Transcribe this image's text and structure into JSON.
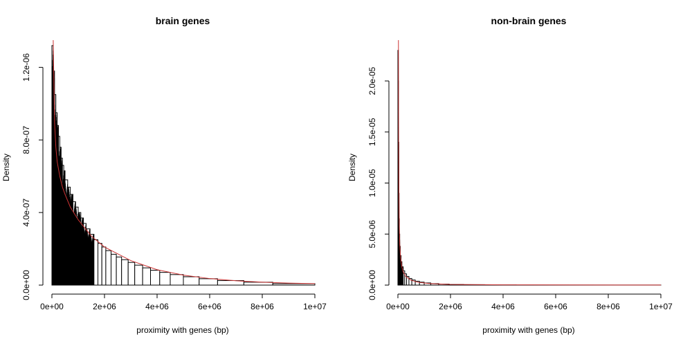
{
  "chart_data": [
    {
      "type": "histogram",
      "title": "brain genes",
      "xlabel": "proximity with genes (bp)",
      "ylabel": "Density",
      "xlim": [
        0,
        10000000
      ],
      "ylim": [
        0,
        1.35e-06
      ],
      "x_ticks": [
        0,
        2000000,
        4000000,
        6000000,
        8000000,
        10000000
      ],
      "x_tick_labels": [
        "0e+00",
        "2e+06",
        "4e+06",
        "6e+06",
        "8e+06",
        "1e+07"
      ],
      "y_ticks": [
        0,
        4e-07,
        8e-07,
        1.2e-06
      ],
      "y_tick_labels": [
        "0.0e+00",
        "4.0e-07",
        "8.0e-07",
        "1.2e-06"
      ],
      "bar_color": "#000000",
      "bins": [
        [
          0,
          50000,
          1.32e-06
        ],
        [
          50000,
          100000,
          1.18e-06
        ],
        [
          100000,
          150000,
          1.05e-06
        ],
        [
          150000,
          200000,
          9.5e-07
        ],
        [
          200000,
          250000,
          8.8e-07
        ],
        [
          250000,
          300000,
          8.2e-07
        ],
        [
          300000,
          350000,
          7.6e-07
        ],
        [
          350000,
          400000,
          7e-07
        ],
        [
          400000,
          450000,
          6.6e-07
        ],
        [
          450000,
          500000,
          6.3e-07
        ],
        [
          500000,
          600000,
          5.8e-07
        ],
        [
          600000,
          700000,
          5.4e-07
        ],
        [
          700000,
          800000,
          5e-07
        ],
        [
          800000,
          900000,
          4.6e-07
        ],
        [
          900000,
          1000000,
          4.3e-07
        ],
        [
          1000000,
          1100000,
          4e-07
        ],
        [
          1100000,
          1200000,
          3.7e-07
        ],
        [
          1200000,
          1300000,
          3.4e-07
        ],
        [
          1300000,
          1450000,
          3.1e-07
        ],
        [
          1450000,
          1600000,
          2.8e-07
        ],
        [
          1600000,
          1750000,
          2.5e-07
        ],
        [
          1750000,
          1900000,
          2.3e-07
        ],
        [
          1900000,
          2050000,
          2.1e-07
        ],
        [
          2050000,
          2250000,
          1.9e-07
        ],
        [
          2250000,
          2450000,
          1.7e-07
        ],
        [
          2450000,
          2650000,
          1.55e-07
        ],
        [
          2650000,
          2900000,
          1.4e-07
        ],
        [
          2900000,
          3150000,
          1.25e-07
        ],
        [
          3150000,
          3450000,
          1.1e-07
        ],
        [
          3450000,
          3750000,
          9.5e-08
        ],
        [
          3750000,
          4100000,
          8.2e-08
        ],
        [
          4100000,
          4500000,
          7e-08
        ],
        [
          4500000,
          5000000,
          5.8e-08
        ],
        [
          5000000,
          5600000,
          4.6e-08
        ],
        [
          5600000,
          6300000,
          3.5e-08
        ],
        [
          6300000,
          7300000,
          2.5e-08
        ],
        [
          7300000,
          8400000,
          1.6e-08
        ],
        [
          8400000,
          10000000,
          8e-09
        ]
      ],
      "density_curve": {
        "color": "#cc3333",
        "x": [
          50000,
          100000,
          150000,
          200000,
          300000,
          400000,
          500000,
          700000,
          1000000,
          1500000,
          2000000,
          3000000,
          4000000,
          5000000,
          6000000,
          7000000,
          8000000,
          9000000,
          10000000
        ],
        "y": [
          1.35e-06,
          9e-07,
          7.6e-07,
          6.8e-07,
          6e-07,
          5.4e-07,
          5e-07,
          4.3e-07,
          3.6e-07,
          2.7e-07,
          2.1e-07,
          1.35e-07,
          8.5e-08,
          5.5e-08,
          3.6e-08,
          2.4e-08,
          1.6e-08,
          1.1e-08,
          8e-09
        ]
      }
    },
    {
      "type": "histogram",
      "title": "non-brain genes",
      "xlabel": "proximity with genes (bp)",
      "ylabel": "Density",
      "xlim": [
        0,
        10000000
      ],
      "ylim": [
        0,
        2.4e-05
      ],
      "x_ticks": [
        0,
        2000000,
        4000000,
        6000000,
        8000000,
        10000000
      ],
      "x_tick_labels": [
        "0e+00",
        "2e+06",
        "4e+06",
        "6e+06",
        "8e+06",
        "1e+07"
      ],
      "y_ticks": [
        0,
        5e-06,
        1e-05,
        1.5e-05,
        2e-05
      ],
      "y_tick_labels": [
        "0.0e+00",
        "5.0e-06",
        "1.0e-05",
        "1.5e-05",
        "2.0e-05"
      ],
      "bar_color": "#000000",
      "bins": [
        [
          0,
          10000,
          2.3e-05
        ],
        [
          10000,
          20000,
          2e-05
        ],
        [
          20000,
          30000,
          1.4e-05
        ],
        [
          30000,
          40000,
          9e-06
        ],
        [
          40000,
          50000,
          6.5e-06
        ],
        [
          50000,
          70000,
          5e-06
        ],
        [
          70000,
          90000,
          3.8e-06
        ],
        [
          90000,
          120000,
          2.9e-06
        ],
        [
          120000,
          150000,
          2.3e-06
        ],
        [
          150000,
          200000,
          1.8e-06
        ],
        [
          200000,
          260000,
          1.4e-06
        ],
        [
          260000,
          330000,
          1.1e-06
        ],
        [
          330000,
          420000,
          8.5e-07
        ],
        [
          420000,
          530000,
          6.5e-07
        ],
        [
          530000,
          660000,
          5e-07
        ],
        [
          660000,
          820000,
          3.8e-07
        ],
        [
          820000,
          1000000,
          2.9e-07
        ],
        [
          1000000,
          1250000,
          2.1e-07
        ],
        [
          1250000,
          1550000,
          1.5e-07
        ],
        [
          1550000,
          1950000,
          1e-07
        ],
        [
          1950000,
          2500000,
          6.5e-08
        ],
        [
          2500000,
          3300000,
          4e-08
        ],
        [
          3300000,
          4500000,
          2.2e-08
        ],
        [
          4500000,
          10000000,
          8e-09
        ]
      ],
      "density_curve": {
        "color": "#cc3333",
        "x": [
          20000,
          30000,
          40000,
          50000,
          70000,
          100000,
          150000,
          200000,
          300000,
          500000,
          800000,
          1200000,
          2000000,
          4000000,
          10000000
        ],
        "y": [
          2.4e-05,
          1.3e-05,
          8.5e-06,
          6e-06,
          4e-06,
          2.7e-06,
          1.8e-06,
          1.3e-06,
          8.5e-07,
          4.8e-07,
          2.6e-07,
          1.5e-07,
          7e-08,
          2.5e-08,
          6e-09
        ]
      }
    }
  ]
}
